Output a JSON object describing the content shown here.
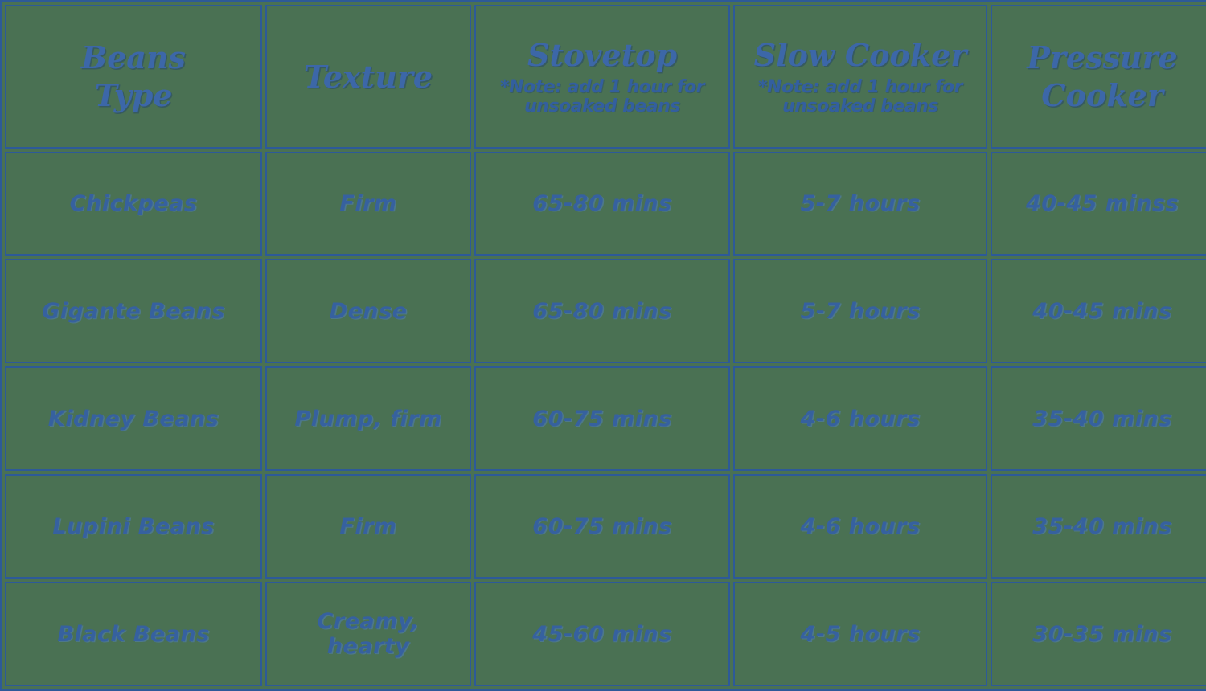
{
  "colors": {
    "background": "#4A7153",
    "grid_ink": "#2D5A98",
    "text_ink": "#36619F"
  },
  "chart_data": {
    "type": "table",
    "columns": [
      "Beans Type",
      "Texture",
      "Stovetop",
      "Slow Cooker",
      "Pressure Cooker"
    ],
    "column_notes": [
      "",
      "",
      "*Note: add 1 hour for unsoaked beans",
      "*Note: add 1 hour for unsoaked beans",
      ""
    ],
    "rows": [
      [
        "Chickpeas",
        "Firm",
        "65-80 mins",
        "5-7 hours",
        "40-45 minss"
      ],
      [
        "Gigante Beans",
        "Dense",
        "65-80 mins",
        "5-7 hours",
        "40-45 mins"
      ],
      [
        "Kidney Beans",
        "Plump, firm",
        "60-75 mins",
        "4-6 hours",
        "35-40 mins"
      ],
      [
        "Lupini Beans",
        "Firm",
        "60-75 mins",
        "4-6 hours",
        "35-40 mins"
      ],
      [
        "Black Beans",
        "Creamy, hearty",
        "45-60 mins",
        "4-5 hours",
        "30-35 mins"
      ]
    ]
  },
  "ui": {
    "header": [
      {
        "label": "Beans\nType",
        "note": ""
      },
      {
        "label": "Texture",
        "note": ""
      },
      {
        "label": "Stovetop",
        "note": "*Note: add 1 hour for unsoaked beans"
      },
      {
        "label": "Slow Cooker",
        "note": "*Note: add 1 hour for unsoaked beans"
      },
      {
        "label": "Pressure\nCooker",
        "note": ""
      }
    ]
  }
}
